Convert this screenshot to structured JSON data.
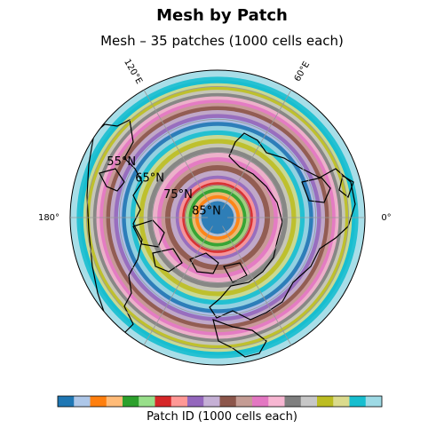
{
  "figure": {
    "title": "Mesh by Patch",
    "subtitle": "Mesh – 35 patches (1000 cells each)"
  },
  "map": {
    "projection": "north-polar-stereographic",
    "lon_labels": [
      {
        "lon": 120,
        "text": "120°E"
      },
      {
        "lon": 60,
        "text": "60°E"
      },
      {
        "lon": 180,
        "text": "180°"
      },
      {
        "lon": 0,
        "text": "0°"
      }
    ],
    "lat_labels": [
      {
        "lat": 55,
        "text": "55°N"
      },
      {
        "lat": 65,
        "text": "65°N"
      },
      {
        "lat": 75,
        "text": "75°N"
      },
      {
        "lat": 85,
        "text": "85°N"
      }
    ]
  },
  "chart_data": {
    "type": "heatmap",
    "title": "Mesh by Patch",
    "subtitle": "Mesh – 35 patches (1000 cells each)",
    "patch_count": 35,
    "cells_per_patch": 1000,
    "patch_bands": [
      {
        "patch": 0,
        "lat_min": 85.0,
        "lat_max": 90.0,
        "color": "#1f77b4"
      },
      {
        "patch": 1,
        "lat_min": 84.2,
        "lat_max": 85.0,
        "color": "#aec7e8"
      },
      {
        "patch": 2,
        "lat_min": 83.2,
        "lat_max": 84.2,
        "color": "#ff7f0e"
      },
      {
        "patch": 3,
        "lat_min": 82.2,
        "lat_max": 83.2,
        "color": "#ffbb78"
      },
      {
        "patch": 4,
        "lat_min": 81.2,
        "lat_max": 82.2,
        "color": "#2ca02c"
      },
      {
        "patch": 5,
        "lat_min": 80.2,
        "lat_max": 81.2,
        "color": "#98df8a"
      },
      {
        "patch": 6,
        "lat_min": 79.2,
        "lat_max": 80.2,
        "color": "#d62728"
      },
      {
        "patch": 7,
        "lat_min": 78.2,
        "lat_max": 79.2,
        "color": "#ff9896"
      },
      {
        "patch": 8,
        "lat_min": 77.2,
        "lat_max": 78.2,
        "color": "#9467bd"
      },
      {
        "patch": 9,
        "lat_min": 75.6,
        "lat_max": 77.2,
        "color": "#c5b0d5"
      },
      {
        "patch": 10,
        "lat_min": 74.0,
        "lat_max": 75.6,
        "color": "#8c564b"
      },
      {
        "patch": 11,
        "lat_min": 72.8,
        "lat_max": 74.0,
        "color": "#c49c94"
      },
      {
        "patch": 12,
        "lat_min": 71.6,
        "lat_max": 72.8,
        "color": "#e377c2"
      },
      {
        "patch": 13,
        "lat_min": 70.2,
        "lat_max": 71.6,
        "color": "#f7b6d2"
      },
      {
        "patch": 14,
        "lat_min": 68.6,
        "lat_max": 70.2,
        "color": "#7f7f7f"
      },
      {
        "patch": 15,
        "lat_min": 67.4,
        "lat_max": 68.6,
        "color": "#c7c7c7"
      },
      {
        "patch": 16,
        "lat_min": 66.0,
        "lat_max": 67.4,
        "color": "#bcbd22"
      },
      {
        "patch": 17,
        "lat_min": 64.8,
        "lat_max": 66.0,
        "color": "#dbdb8d"
      },
      {
        "patch": 18,
        "lat_min": 63.4,
        "lat_max": 64.8,
        "color": "#17becf"
      },
      {
        "patch": 19,
        "lat_min": 62.0,
        "lat_max": 63.4,
        "color": "#9edae5"
      },
      {
        "patch": 20,
        "lat_min": 60.8,
        "lat_max": 62.0,
        "color": "#1f77b4"
      },
      {
        "patch": 21,
        "lat_min": 59.6,
        "lat_max": 60.8,
        "color": "#aec7e8"
      },
      {
        "patch": 22,
        "lat_min": 58.4,
        "lat_max": 59.6,
        "color": "#9467bd"
      },
      {
        "patch": 23,
        "lat_min": 57.2,
        "lat_max": 58.4,
        "color": "#c5b0d5"
      },
      {
        "patch": 24,
        "lat_min": 56.0,
        "lat_max": 57.2,
        "color": "#8c564b"
      },
      {
        "patch": 25,
        "lat_min": 55.0,
        "lat_max": 56.0,
        "color": "#c49c94"
      },
      {
        "patch": 26,
        "lat_min": 54.0,
        "lat_max": 55.0,
        "color": "#e377c2"
      },
      {
        "patch": 27,
        "lat_min": 53.0,
        "lat_max": 54.0,
        "color": "#f7b6d2"
      },
      {
        "patch": 28,
        "lat_min": 52.0,
        "lat_max": 53.0,
        "color": "#7f7f7f"
      },
      {
        "patch": 29,
        "lat_min": 51.0,
        "lat_max": 52.0,
        "color": "#c7c7c7"
      },
      {
        "patch": 30,
        "lat_min": 50.0,
        "lat_max": 51.0,
        "color": "#bcbd22"
      },
      {
        "patch": 31,
        "lat_min": 49.0,
        "lat_max": 50.0,
        "color": "#dbdb8d"
      },
      {
        "patch": 32,
        "lat_min": 48.0,
        "lat_max": 49.0,
        "color": "#17becf"
      },
      {
        "patch": 33,
        "lat_min": 47.0,
        "lat_max": 48.0,
        "color": "#17becf"
      },
      {
        "patch": 34,
        "lat_min": 45.0,
        "lat_max": 47.0,
        "color": "#9edae5"
      }
    ],
    "colorbar": {
      "label": "Patch ID (1000 cells each)",
      "colors": [
        "#1f77b4",
        "#aec7e8",
        "#ff7f0e",
        "#ffbb78",
        "#2ca02c",
        "#98df8a",
        "#d62728",
        "#ff9896",
        "#9467bd",
        "#c5b0d5",
        "#8c564b",
        "#c49c94",
        "#e377c2",
        "#f7b6d2",
        "#7f7f7f",
        "#c7c7c7",
        "#bcbd22",
        "#dbdb8d",
        "#17becf",
        "#9edae5"
      ]
    }
  }
}
